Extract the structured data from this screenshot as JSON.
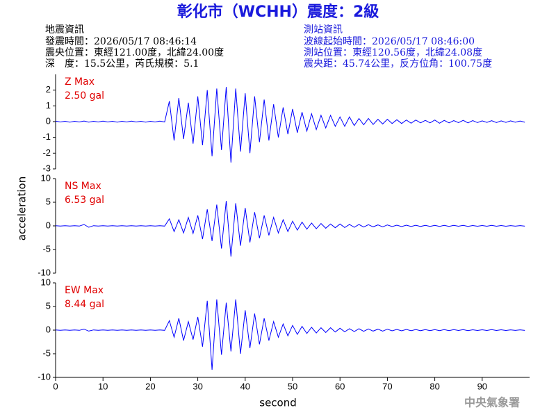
{
  "header": {
    "title": "彰化市（WCHH）震度：2級",
    "left": [
      "地震資訊",
      "發震時間：2026/05/17 08:46:14",
      "震央位置：東經121.00度，北緯24.00度",
      "深　度：15.5公里，芮氏規模：5.1"
    ],
    "right": [
      "測站資訊",
      "波線起始時間：2026/05/17 08:46:00",
      "測站位置：東經120.56度，北緯24.08度",
      "震央距：45.74公里，反方位角：100.75度"
    ],
    "footer": "中央氣象署"
  },
  "chart_data": [
    {
      "type": "line",
      "annotations": [
        "Z Max",
        "2.50 gal"
      ],
      "color": "#0000ff",
      "x": [
        0,
        1,
        2,
        3,
        4,
        5,
        6,
        7,
        8,
        9,
        10,
        11,
        12,
        13,
        14,
        15,
        16,
        17,
        18,
        19,
        20,
        21,
        22,
        23,
        24,
        25,
        26,
        27,
        28,
        29,
        30,
        31,
        32,
        33,
        34,
        35,
        36,
        37,
        38,
        39,
        40,
        41,
        42,
        43,
        44,
        45,
        46,
        47,
        48,
        49,
        50,
        51,
        52,
        53,
        54,
        55,
        56,
        57,
        58,
        59,
        60,
        61,
        62,
        63,
        64,
        65,
        66,
        67,
        68,
        69,
        70,
        71,
        72,
        73,
        74,
        75,
        76,
        77,
        78,
        79,
        80,
        81,
        82,
        83,
        84,
        85,
        86,
        87,
        88,
        89,
        90,
        91,
        92,
        93,
        94,
        95,
        96,
        97,
        98,
        99
      ],
      "values": [
        0.03,
        -0.02,
        0.02,
        -0.03,
        0.02,
        -0.02,
        0.04,
        -0.03,
        0.02,
        -0.02,
        0.03,
        -0.02,
        0.02,
        -0.03,
        0.02,
        -0.02,
        0.03,
        -0.02,
        0.02,
        -0.03,
        0.02,
        -0.02,
        0.03,
        -0.02,
        1.3,
        -1.2,
        1.5,
        -1.1,
        1.2,
        -1.4,
        1.6,
        -1.5,
        2.0,
        -2.2,
        2.1,
        -1.8,
        2.2,
        -2.6,
        2.1,
        -1.9,
        1.8,
        -2.0,
        1.6,
        -1.3,
        1.4,
        -1.2,
        1.1,
        -1.0,
        0.9,
        -0.8,
        0.8,
        -0.7,
        0.6,
        -0.6,
        0.5,
        -0.5,
        0.4,
        -0.4,
        0.4,
        -0.3,
        0.3,
        -0.3,
        0.3,
        -0.25,
        0.2,
        -0.2,
        0.2,
        -0.18,
        0.15,
        -0.15,
        0.15,
        -0.12,
        0.12,
        -0.12,
        0.1,
        -0.1,
        0.1,
        -0.08,
        0.08,
        -0.08,
        0.1,
        -0.1,
        0.08,
        -0.08,
        0.06,
        -0.06,
        0.08,
        -0.08,
        0.06,
        -0.06,
        0.05,
        -0.05,
        0.06,
        -0.06,
        0.05,
        -0.05,
        0.05,
        -0.04,
        0.04,
        -0.04
      ],
      "xlim": [
        0,
        100
      ],
      "ylim": [
        -3,
        3
      ],
      "yticks": [
        -3,
        -2,
        -1,
        0,
        1,
        2
      ]
    },
    {
      "type": "line",
      "annotations": [
        "NS Max",
        "6.53 gal"
      ],
      "color": "#0000ff",
      "ylabel": "acceleration",
      "x": [
        0,
        1,
        2,
        3,
        4,
        5,
        6,
        7,
        8,
        9,
        10,
        11,
        12,
        13,
        14,
        15,
        16,
        17,
        18,
        19,
        20,
        21,
        22,
        23,
        24,
        25,
        26,
        27,
        28,
        29,
        30,
        31,
        32,
        33,
        34,
        35,
        36,
        37,
        38,
        39,
        40,
        41,
        42,
        43,
        44,
        45,
        46,
        47,
        48,
        49,
        50,
        51,
        52,
        53,
        54,
        55,
        56,
        57,
        58,
        59,
        60,
        61,
        62,
        63,
        64,
        65,
        66,
        67,
        68,
        69,
        70,
        71,
        72,
        73,
        74,
        75,
        76,
        77,
        78,
        79,
        80,
        81,
        82,
        83,
        84,
        85,
        86,
        87,
        88,
        89,
        90,
        91,
        92,
        93,
        94,
        95,
        96,
        97,
        98,
        99
      ],
      "values": [
        0.05,
        -0.05,
        0.05,
        -0.05,
        0.05,
        -0.05,
        0.3,
        -0.3,
        0.05,
        -0.05,
        0.05,
        -0.05,
        0.05,
        -0.05,
        0.05,
        -0.05,
        0.05,
        -0.05,
        0.05,
        -0.05,
        0.05,
        -0.05,
        0.05,
        -0.05,
        1.5,
        -1.2,
        1.3,
        -1.5,
        1.8,
        -1.6,
        2.2,
        -2.8,
        3.5,
        -3.2,
        4.5,
        -4.8,
        5.3,
        -6.5,
        4.8,
        -4.2,
        3.8,
        -3.5,
        2.9,
        -2.6,
        2.2,
        -2.0,
        1.8,
        -1.5,
        1.3,
        -1.2,
        1.0,
        -0.9,
        0.8,
        -0.7,
        0.6,
        -0.6,
        0.5,
        -0.5,
        0.4,
        -0.4,
        0.4,
        -0.35,
        0.3,
        -0.3,
        0.3,
        -0.25,
        0.25,
        -0.2,
        0.2,
        -0.2,
        0.2,
        -0.15,
        0.15,
        -0.15,
        0.15,
        -0.12,
        0.12,
        -0.12,
        0.1,
        -0.1,
        0.12,
        -0.1,
        0.1,
        -0.1,
        0.1,
        -0.08,
        0.1,
        -0.1,
        0.08,
        -0.08,
        0.08,
        -0.08,
        0.1,
        -0.08,
        0.08,
        -0.08,
        0.06,
        -0.06,
        0.06,
        -0.06
      ],
      "xlim": [
        0,
        100
      ],
      "ylim": [
        -10,
        10
      ],
      "yticks": [
        -10,
        -5,
        0,
        5,
        10
      ]
    },
    {
      "type": "line",
      "annotations": [
        "EW Max",
        "8.44 gal"
      ],
      "color": "#0000ff",
      "xlabel": "second",
      "x": [
        0,
        1,
        2,
        3,
        4,
        5,
        6,
        7,
        8,
        9,
        10,
        11,
        12,
        13,
        14,
        15,
        16,
        17,
        18,
        19,
        20,
        21,
        22,
        23,
        24,
        25,
        26,
        27,
        28,
        29,
        30,
        31,
        32,
        33,
        34,
        35,
        36,
        37,
        38,
        39,
        40,
        41,
        42,
        43,
        44,
        45,
        46,
        47,
        48,
        49,
        50,
        51,
        52,
        53,
        54,
        55,
        56,
        57,
        58,
        59,
        60,
        61,
        62,
        63,
        64,
        65,
        66,
        67,
        68,
        69,
        70,
        71,
        72,
        73,
        74,
        75,
        76,
        77,
        78,
        79,
        80,
        81,
        82,
        83,
        84,
        85,
        86,
        87,
        88,
        89,
        90,
        91,
        92,
        93,
        94,
        95,
        96,
        97,
        98,
        99
      ],
      "values": [
        0.05,
        -0.05,
        0.05,
        -0.05,
        0.05,
        -0.05,
        0.2,
        -0.2,
        0.05,
        -0.05,
        0.05,
        -0.05,
        0.05,
        -0.05,
        0.05,
        -0.05,
        0.05,
        -0.05,
        0.05,
        -0.05,
        0.05,
        -0.05,
        0.05,
        -0.05,
        2.0,
        -1.5,
        2.5,
        -2.2,
        1.8,
        -2.0,
        2.8,
        -3.5,
        6.2,
        -8.4,
        6.5,
        -5.2,
        5.8,
        -4.5,
        6.5,
        -5.0,
        4.2,
        -3.8,
        3.5,
        -3.0,
        2.5,
        -2.2,
        1.8,
        -1.5,
        1.3,
        -1.2,
        1.0,
        -0.9,
        0.8,
        -0.7,
        0.6,
        -0.6,
        0.5,
        -0.5,
        0.5,
        -0.4,
        0.4,
        -0.35,
        0.3,
        -0.3,
        0.3,
        -0.25,
        0.25,
        -0.2,
        0.2,
        -0.2,
        0.2,
        -0.15,
        0.15,
        -0.15,
        0.15,
        -0.12,
        0.12,
        -0.12,
        0.1,
        -0.1,
        0.12,
        -0.1,
        0.1,
        -0.1,
        0.1,
        -0.08,
        0.1,
        -0.1,
        0.08,
        -0.08,
        0.08,
        -0.08,
        0.1,
        -0.08,
        0.08,
        -0.08,
        0.06,
        -0.06,
        0.06,
        -0.06
      ],
      "xlim": [
        0,
        100
      ],
      "ylim": [
        -10,
        10
      ],
      "yticks": [
        -10,
        -5,
        0,
        5,
        10
      ],
      "xticks": [
        0,
        10,
        20,
        30,
        40,
        50,
        60,
        70,
        80,
        90
      ]
    }
  ]
}
